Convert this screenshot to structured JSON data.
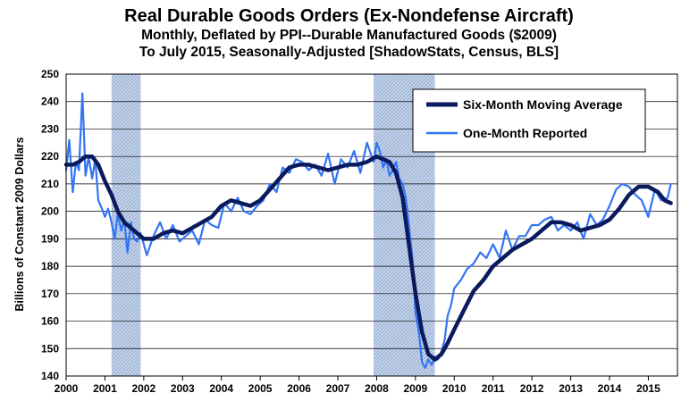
{
  "chart_data": {
    "type": "line",
    "title": "Real Durable Goods Orders (Ex-Nondefense Aircraft)",
    "subtitle_lines": [
      "Monthly, Deflated by PPI--Durable Manufactured Goods ($2009)",
      "To July 2015, Seasonally-Adjusted [ShadowStats, Census, BLS]"
    ],
    "ylabel": "Billions  of Constant 2009 Dollars",
    "xlabel": "",
    "ylim": [
      140,
      250
    ],
    "yticks": [
      140,
      150,
      160,
      170,
      180,
      190,
      200,
      210,
      220,
      230,
      240,
      250
    ],
    "xlim": [
      2000,
      2015.75
    ],
    "xticks": [
      2000,
      2001,
      2002,
      2003,
      2004,
      2005,
      2006,
      2007,
      2008,
      2009,
      2010,
      2011,
      2012,
      2013,
      2014,
      2015
    ],
    "grid": "horizontal",
    "legend_position": "top-right",
    "recessions": [
      [
        2001.17,
        2001.92
      ],
      [
        2007.92,
        2009.5
      ]
    ],
    "colors": {
      "moving_average": "#0b1a5c",
      "reported": "#3374f5",
      "recession_fill": "#c9d8ee",
      "recession_hatch": "#8fa6cc"
    },
    "series": [
      {
        "name": "Six-Month Moving Average",
        "x": [
          2000.0,
          2000.17,
          2000.33,
          2000.5,
          2000.67,
          2000.83,
          2001.0,
          2001.17,
          2001.33,
          2001.5,
          2001.67,
          2001.83,
          2002.0,
          2002.25,
          2002.5,
          2002.75,
          2003.0,
          2003.25,
          2003.5,
          2003.75,
          2004.0,
          2004.25,
          2004.5,
          2004.75,
          2005.0,
          2005.25,
          2005.5,
          2005.75,
          2006.0,
          2006.25,
          2006.5,
          2006.75,
          2007.0,
          2007.25,
          2007.5,
          2007.75,
          2008.0,
          2008.17,
          2008.33,
          2008.5,
          2008.67,
          2008.83,
          2009.0,
          2009.17,
          2009.33,
          2009.5,
          2009.67,
          2009.83,
          2010.0,
          2010.25,
          2010.5,
          2010.75,
          2011.0,
          2011.25,
          2011.5,
          2011.75,
          2012.0,
          2012.25,
          2012.5,
          2012.75,
          2013.0,
          2013.25,
          2013.5,
          2013.75,
          2014.0,
          2014.25,
          2014.5,
          2014.75,
          2015.0,
          2015.25,
          2015.42,
          2015.58
        ],
        "y": [
          217,
          217,
          218,
          220,
          220,
          217,
          211,
          206,
          200,
          196,
          194,
          192,
          190,
          190,
          192,
          193,
          192,
          194,
          196,
          198,
          202,
          204,
          203,
          202,
          204,
          208,
          212,
          216,
          217,
          217,
          216,
          215,
          216,
          217,
          217,
          218,
          220,
          219,
          218,
          214,
          205,
          188,
          170,
          156,
          148,
          146,
          148,
          152,
          157,
          164,
          171,
          175,
          180,
          183,
          186,
          188,
          190,
          193,
          196,
          196,
          195,
          193,
          194,
          195,
          197,
          201,
          206,
          209,
          209,
          207,
          204,
          203
        ]
      },
      {
        "name": "One-Month Reported",
        "x": [
          2000.0,
          2000.08,
          2000.17,
          2000.25,
          2000.33,
          2000.42,
          2000.5,
          2000.58,
          2000.67,
          2000.75,
          2000.83,
          2000.92,
          2001.0,
          2001.08,
          2001.17,
          2001.25,
          2001.33,
          2001.42,
          2001.5,
          2001.58,
          2001.67,
          2001.75,
          2001.83,
          2001.92,
          2002.0,
          2002.08,
          2002.25,
          2002.42,
          2002.58,
          2002.75,
          2002.92,
          2003.08,
          2003.25,
          2003.42,
          2003.58,
          2003.75,
          2003.92,
          2004.08,
          2004.25,
          2004.42,
          2004.58,
          2004.75,
          2004.92,
          2005.08,
          2005.25,
          2005.42,
          2005.58,
          2005.75,
          2005.92,
          2006.08,
          2006.25,
          2006.42,
          2006.58,
          2006.75,
          2006.92,
          2007.08,
          2007.25,
          2007.42,
          2007.58,
          2007.75,
          2007.92,
          2008.0,
          2008.08,
          2008.17,
          2008.25,
          2008.33,
          2008.42,
          2008.5,
          2008.58,
          2008.67,
          2008.75,
          2008.83,
          2008.92,
          2009.0,
          2009.08,
          2009.17,
          2009.25,
          2009.33,
          2009.42,
          2009.5,
          2009.58,
          2009.67,
          2009.75,
          2009.83,
          2009.92,
          2010.0,
          2010.17,
          2010.33,
          2010.5,
          2010.67,
          2010.83,
          2011.0,
          2011.17,
          2011.33,
          2011.5,
          2011.67,
          2011.83,
          2012.0,
          2012.17,
          2012.33,
          2012.5,
          2012.67,
          2012.83,
          2013.0,
          2013.17,
          2013.33,
          2013.5,
          2013.67,
          2013.83,
          2014.0,
          2014.17,
          2014.33,
          2014.5,
          2014.67,
          2014.83,
          2015.0,
          2015.17,
          2015.33,
          2015.5,
          2015.58
        ],
        "y": [
          215,
          226,
          207,
          218,
          215,
          243,
          213,
          220,
          212,
          219,
          204,
          201,
          198,
          201,
          196,
          190,
          199,
          193,
          197,
          185,
          196,
          190,
          189,
          192,
          188,
          184,
          191,
          196,
          190,
          195,
          189,
          191,
          193,
          188,
          197,
          195,
          194,
          203,
          200,
          205,
          200,
          199,
          202,
          204,
          210,
          207,
          216,
          214,
          219,
          218,
          215,
          217,
          213,
          221,
          210,
          219,
          216,
          222,
          214,
          225,
          218,
          225,
          222,
          216,
          219,
          213,
          215,
          218,
          212,
          210,
          205,
          195,
          183,
          163,
          157,
          145,
          143,
          146,
          144,
          147,
          146,
          149,
          153,
          162,
          166,
          172,
          175,
          179,
          181,
          185,
          183,
          188,
          183,
          193,
          186,
          191,
          191,
          195,
          195,
          197,
          198,
          193,
          195,
          193,
          196,
          190,
          199,
          195,
          197,
          202,
          208,
          210,
          209,
          206,
          204,
          198,
          208,
          204,
          205,
          210
        ]
      }
    ]
  }
}
